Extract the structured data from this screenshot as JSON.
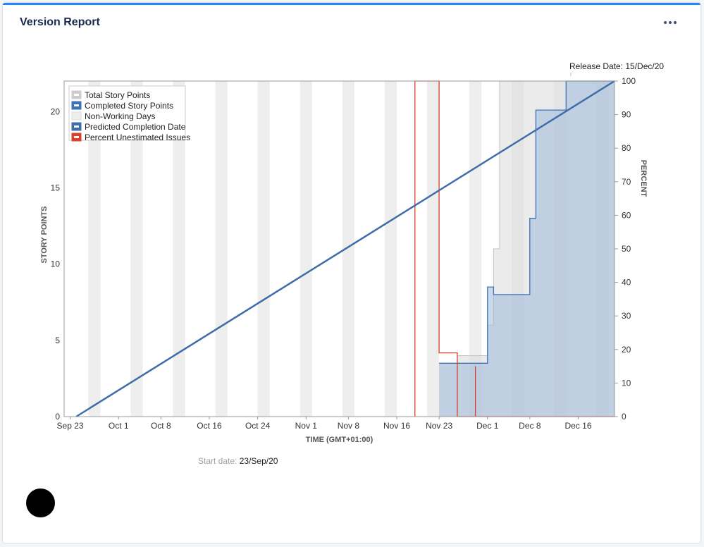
{
  "header": {
    "title": "Version Report",
    "more_label": "More actions"
  },
  "release": {
    "label": "Release Date: 15/Dec/20"
  },
  "start": {
    "label": "Start date:",
    "value": "23/Sep/20"
  },
  "colors": {
    "accent": "#2684ff",
    "total": "#cccccc",
    "completed": "#3b73b9",
    "non_working": "#eeeeee",
    "predicted": "#3f6da8",
    "unestimated": "#d9412e"
  },
  "chart_data": {
    "type": "area",
    "title": "",
    "xlabel": "TIME (GMT+01:00)",
    "ylabel": "STORY POINTS",
    "y2label": "PERCENT",
    "xlim": [
      "2020-09-22",
      "2020-12-22"
    ],
    "ylim": [
      0,
      22
    ],
    "y2lim": [
      0,
      100
    ],
    "x_ticks": [
      {
        "date": "2020-09-23",
        "label": "Sep 23"
      },
      {
        "date": "2020-10-01",
        "label": "Oct 1"
      },
      {
        "date": "2020-10-08",
        "label": "Oct 8"
      },
      {
        "date": "2020-10-16",
        "label": "Oct 16"
      },
      {
        "date": "2020-10-24",
        "label": "Oct 24"
      },
      {
        "date": "2020-11-01",
        "label": "Nov 1"
      },
      {
        "date": "2020-11-08",
        "label": "Nov 8"
      },
      {
        "date": "2020-11-16",
        "label": "Nov 16"
      },
      {
        "date": "2020-11-23",
        "label": "Nov 23"
      },
      {
        "date": "2020-12-01",
        "label": "Dec 1"
      },
      {
        "date": "2020-12-08",
        "label": "Dec 8"
      },
      {
        "date": "2020-12-16",
        "label": "Dec 16"
      }
    ],
    "y_ticks": [
      0,
      5,
      10,
      15,
      20
    ],
    "y2_ticks": [
      0,
      10,
      20,
      30,
      40,
      50,
      60,
      70,
      80,
      90,
      100
    ],
    "legend": {
      "placement": "top-left",
      "items": [
        {
          "label": "Total Story Points",
          "color": "#cccccc"
        },
        {
          "label": "Completed Story Points",
          "color": "#3b73b9"
        },
        {
          "label": "Non-Working Days",
          "color": "#eeeeee"
        },
        {
          "label": "Predicted Completion Date",
          "color": "#3f6da8"
        },
        {
          "label": "Percent Unestimated Issues",
          "color": "#d9412e"
        }
      ]
    },
    "non_working_days": [
      [
        "2020-09-26",
        "2020-09-28"
      ],
      [
        "2020-10-03",
        "2020-10-05"
      ],
      [
        "2020-10-10",
        "2020-10-12"
      ],
      [
        "2020-10-17",
        "2020-10-19"
      ],
      [
        "2020-10-24",
        "2020-10-26"
      ],
      [
        "2020-10-31",
        "2020-11-02"
      ],
      [
        "2020-11-07",
        "2020-11-09"
      ],
      [
        "2020-11-14",
        "2020-11-16"
      ],
      [
        "2020-11-21",
        "2020-11-23"
      ],
      [
        "2020-11-28",
        "2020-11-30"
      ],
      [
        "2020-12-05",
        "2020-12-07"
      ],
      [
        "2020-12-12",
        "2020-12-14"
      ],
      [
        "2020-12-19",
        "2020-12-21"
      ]
    ],
    "series": [
      {
        "name": "Total Story Points",
        "step": true,
        "points": [
          [
            "2020-11-23",
            3.5
          ],
          [
            "2020-11-26",
            4
          ],
          [
            "2020-12-01",
            6
          ],
          [
            "2020-12-02",
            11
          ],
          [
            "2020-12-03",
            22
          ],
          [
            "2020-12-22",
            22
          ]
        ]
      },
      {
        "name": "Completed Story Points",
        "step": true,
        "points": [
          [
            "2020-11-23",
            3.5
          ],
          [
            "2020-11-30",
            3.5
          ],
          [
            "2020-12-01",
            4.5
          ],
          [
            "2020-12-01",
            8.5
          ],
          [
            "2020-12-02",
            8
          ],
          [
            "2020-12-08",
            8
          ],
          [
            "2020-12-08",
            13
          ],
          [
            "2020-12-09",
            14.5
          ],
          [
            "2020-12-09",
            20.1
          ],
          [
            "2020-12-14",
            20.1
          ],
          [
            "2020-12-14",
            22
          ],
          [
            "2020-12-22",
            22
          ]
        ]
      },
      {
        "name": "Predicted Completion Date",
        "points": [
          [
            "2020-09-24",
            0
          ],
          [
            "2020-12-22",
            22
          ]
        ]
      },
      {
        "name": "Percent Unestimated Issues",
        "axis": "right",
        "step": true,
        "points": [
          [
            "2020-11-19",
            0
          ],
          [
            "2020-11-19",
            100
          ],
          [
            "2020-11-23",
            100
          ],
          [
            "2020-11-23",
            19
          ],
          [
            "2020-11-26",
            19
          ],
          [
            "2020-11-26",
            0
          ],
          [
            "2020-11-29",
            0
          ],
          [
            "2020-11-29",
            15
          ],
          [
            "2020-11-29",
            0
          ],
          [
            "2020-12-22",
            0
          ]
        ]
      }
    ]
  }
}
